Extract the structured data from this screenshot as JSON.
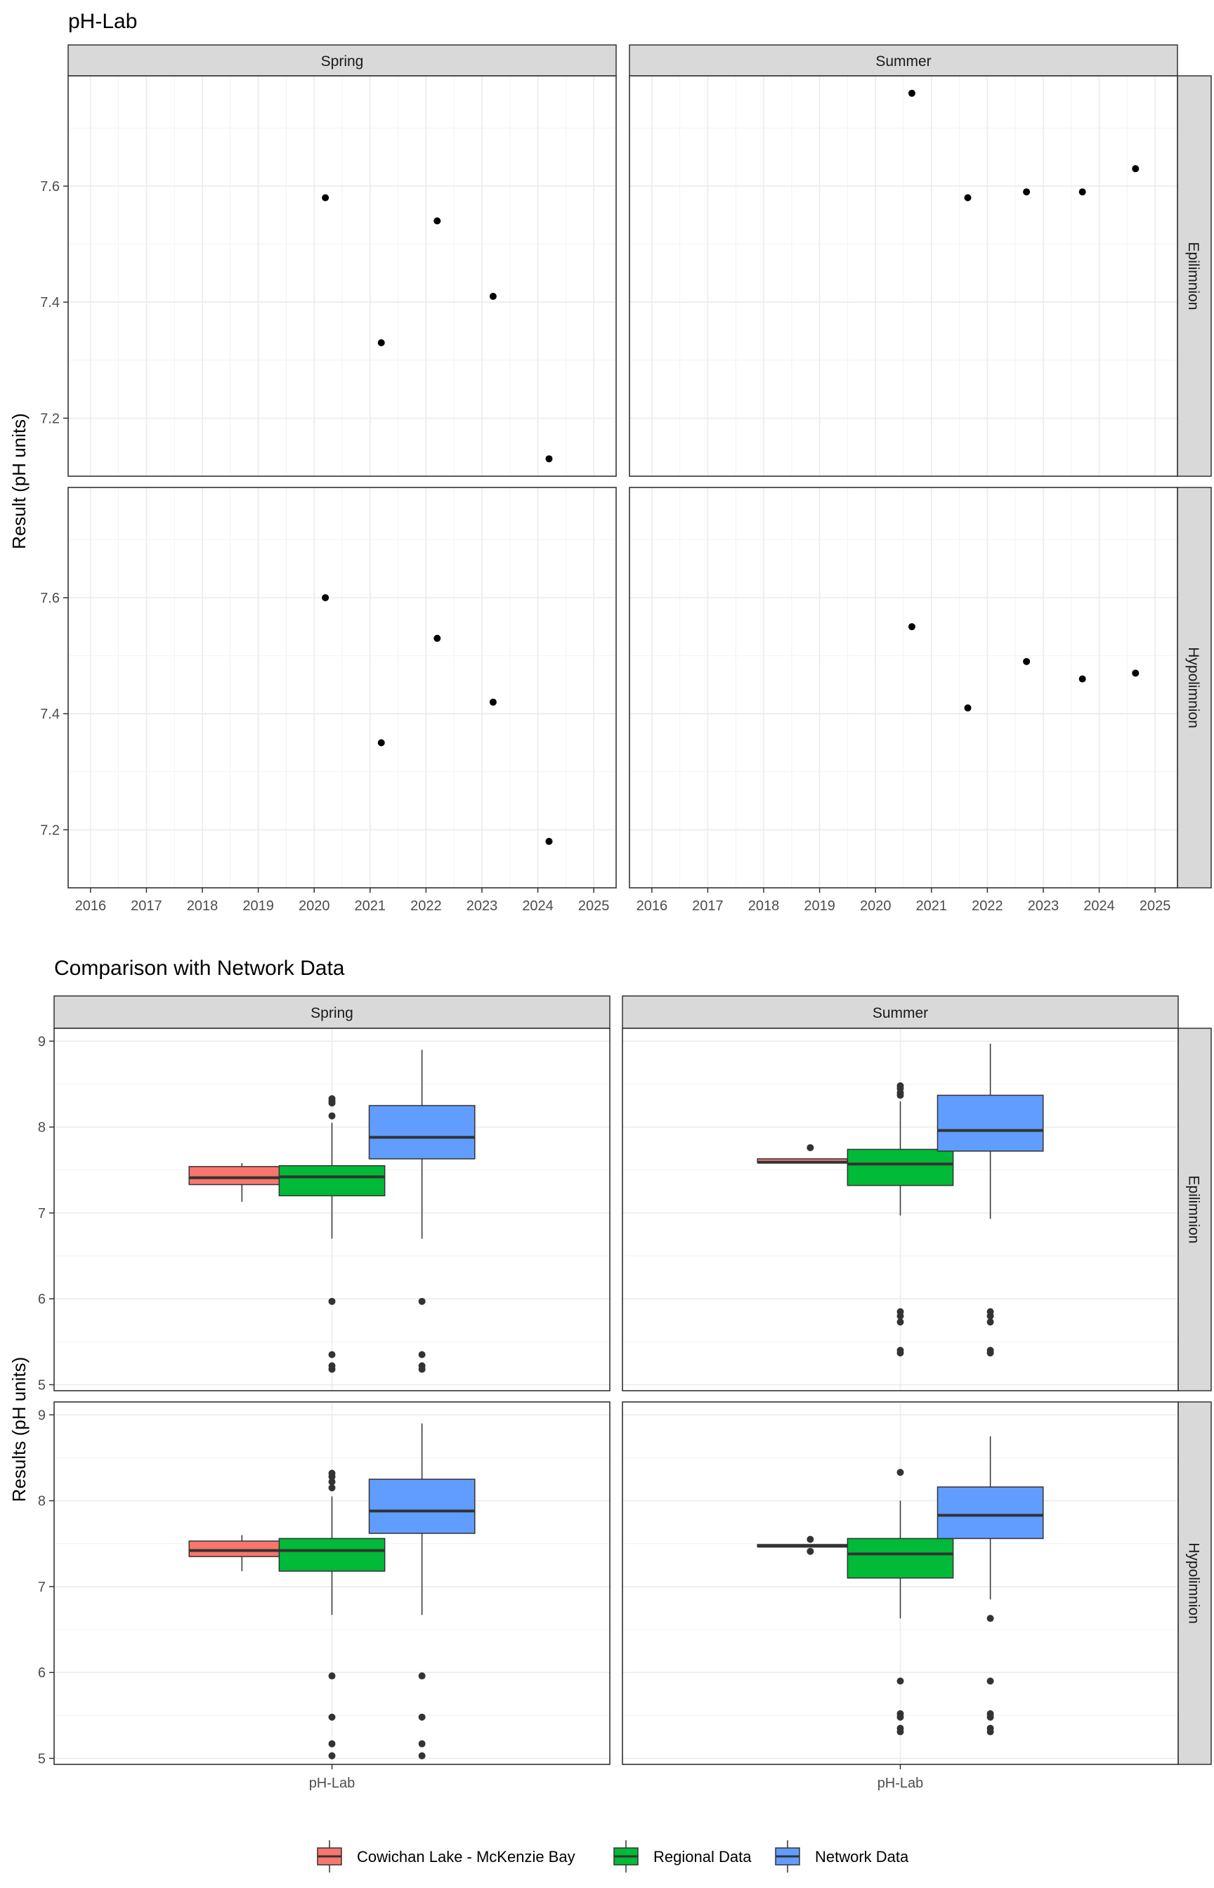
{
  "figure": {
    "top_title": "pH-Lab",
    "top_ylabel": "Result (pH units)",
    "bottom_title": "Comparison with Network Data",
    "bottom_ylabel": "Results (pH units)",
    "bottom_xtick": "pH-Lab"
  },
  "colors": {
    "strip_fill": "#d9d9d9",
    "grid": "#ebebeb",
    "point": "#000000",
    "outlier": "#333333",
    "Cowichan Lake - McKenzie Bay": "#F8766D",
    "Regional Data": "#00BA38",
    "Network Data": "#619CFF"
  },
  "chart_data": [
    {
      "type": "scatter",
      "title": "pH-Lab",
      "ylabel": "Result (pH units)",
      "xlabel": "",
      "x_ticks": [
        "2016",
        "2017",
        "2018",
        "2019",
        "2020",
        "2021",
        "2022",
        "2023",
        "2024",
        "2025"
      ],
      "xlim": [
        2015.6,
        2025.4
      ],
      "ylim": [
        7.1,
        7.79
      ],
      "y_ticks": [
        7.2,
        7.4,
        7.6
      ],
      "grid": true,
      "columns": [
        "Spring",
        "Summer"
      ],
      "rows": [
        "Epilimnion",
        "Hypolimnion"
      ],
      "panels": [
        {
          "column": "Spring",
          "row": "Epilimnion",
          "x": [
            2020.2,
            2021.2,
            2022.2,
            2023.2,
            2024.2
          ],
          "y": [
            7.58,
            7.33,
            7.54,
            7.41,
            7.13
          ]
        },
        {
          "column": "Summer",
          "row": "Epilimnion",
          "x": [
            2020.65,
            2021.65,
            2022.7,
            2023.7,
            2024.65
          ],
          "y": [
            7.76,
            7.58,
            7.59,
            7.59,
            7.63
          ]
        },
        {
          "column": "Spring",
          "row": "Hypolimnion",
          "x": [
            2020.2,
            2021.2,
            2022.2,
            2023.2,
            2024.2
          ],
          "y": [
            7.6,
            7.35,
            7.53,
            7.42,
            7.18
          ]
        },
        {
          "column": "Summer",
          "row": "Hypolimnion",
          "x": [
            2020.65,
            2021.65,
            2022.7,
            2023.7,
            2024.65
          ],
          "y": [
            7.55,
            7.41,
            7.49,
            7.46,
            7.47
          ]
        }
      ]
    },
    {
      "type": "box",
      "title": "Comparison with Network Data",
      "ylabel": "Results (pH units)",
      "xlabel": "",
      "categories": [
        "pH-Lab"
      ],
      "ylim": [
        4.93,
        9.15
      ],
      "y_ticks": [
        5,
        6,
        7,
        8,
        9
      ],
      "grid": true,
      "legend_position": "bottom",
      "legend": [
        "Cowichan Lake - McKenzie Bay",
        "Regional Data",
        "Network Data"
      ],
      "columns": [
        "Spring",
        "Summer"
      ],
      "rows": [
        "Epilimnion",
        "Hypolimnion"
      ],
      "panels": [
        {
          "column": "Spring",
          "row": "Epilimnion",
          "boxes": [
            {
              "group": "Cowichan Lake - McKenzie Bay",
              "whisker_low": 7.13,
              "q1": 7.33,
              "median": 7.41,
              "q3": 7.54,
              "whisker_high": 7.58,
              "outliers": []
            },
            {
              "group": "Regional Data",
              "whisker_low": 6.7,
              "q1": 7.2,
              "median": 7.42,
              "q3": 7.55,
              "whisker_high": 8.05,
              "outliers": [
                8.3,
                8.33,
                8.28,
                8.13,
                5.97,
                5.35,
                5.22,
                5.18
              ]
            },
            {
              "group": "Network Data",
              "whisker_low": 6.7,
              "q1": 7.63,
              "median": 7.88,
              "q3": 8.25,
              "whisker_high": 8.9,
              "outliers": [
                5.97,
                5.35,
                5.22,
                5.18
              ]
            }
          ]
        },
        {
          "column": "Summer",
          "row": "Epilimnion",
          "boxes": [
            {
              "group": "Cowichan Lake - McKenzie Bay",
              "whisker_low": 7.58,
              "q1": 7.585,
              "median": 7.59,
              "q3": 7.63,
              "whisker_high": 7.63,
              "outliers": [
                7.76
              ]
            },
            {
              "group": "Regional Data",
              "whisker_low": 6.97,
              "q1": 7.32,
              "median": 7.57,
              "q3": 7.74,
              "whisker_high": 8.3,
              "outliers": [
                8.48,
                8.45,
                8.4,
                8.37,
                5.85,
                5.8,
                5.73,
                5.4,
                5.37
              ]
            },
            {
              "group": "Network Data",
              "whisker_low": 6.93,
              "q1": 7.72,
              "median": 7.96,
              "q3": 8.37,
              "whisker_high": 8.97,
              "outliers": [
                5.85,
                5.8,
                5.73,
                5.4,
                5.37
              ]
            }
          ]
        },
        {
          "column": "Spring",
          "row": "Hypolimnion",
          "boxes": [
            {
              "group": "Cowichan Lake - McKenzie Bay",
              "whisker_low": 7.18,
              "q1": 7.35,
              "median": 7.42,
              "q3": 7.53,
              "whisker_high": 7.6,
              "outliers": []
            },
            {
              "group": "Regional Data",
              "whisker_low": 6.67,
              "q1": 7.18,
              "median": 7.42,
              "q3": 7.56,
              "whisker_high": 8.05,
              "outliers": [
                8.32,
                8.28,
                8.22,
                8.15,
                5.96,
                5.48,
                5.17,
                5.03
              ]
            },
            {
              "group": "Network Data",
              "whisker_low": 6.67,
              "q1": 7.62,
              "median": 7.88,
              "q3": 8.25,
              "whisker_high": 8.9,
              "outliers": [
                5.96,
                5.48,
                5.17,
                5.03
              ]
            }
          ]
        },
        {
          "column": "Summer",
          "row": "Hypolimnion",
          "boxes": [
            {
              "group": "Cowichan Lake - McKenzie Bay",
              "whisker_low": 7.46,
              "q1": 7.465,
              "median": 7.47,
              "q3": 7.49,
              "whisker_high": 7.49,
              "outliers": [
                7.55,
                7.41
              ]
            },
            {
              "group": "Regional Data",
              "whisker_low": 6.63,
              "q1": 7.1,
              "median": 7.38,
              "q3": 7.56,
              "whisker_high": 8.0,
              "outliers": [
                8.33,
                5.9,
                5.52,
                5.48,
                5.35,
                5.31
              ]
            },
            {
              "group": "Network Data",
              "whisker_low": 6.85,
              "q1": 7.56,
              "median": 7.83,
              "q3": 8.16,
              "whisker_high": 8.75,
              "outliers": [
                6.63,
                5.9,
                5.52,
                5.48,
                5.35,
                5.31
              ]
            }
          ]
        }
      ]
    }
  ]
}
